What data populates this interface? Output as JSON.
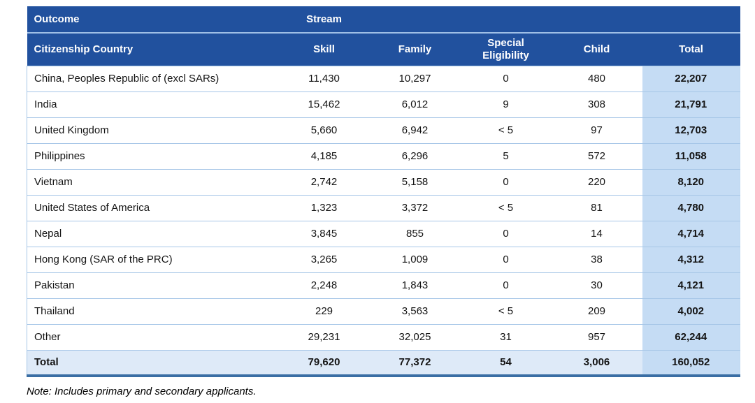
{
  "table": {
    "header": {
      "outcome_label": "Outcome",
      "stream_label": "Stream",
      "columns": {
        "country": "Citizenship Country",
        "skill": "Skill",
        "family": "Family",
        "special_eligibility": "Special Eligibility",
        "child": "Child",
        "total": "Total"
      }
    },
    "rows": [
      {
        "country": "China, Peoples Republic of (excl SARs)",
        "skill": "11,430",
        "family": "10,297",
        "special_eligibility": "0",
        "child": "480",
        "total": "22,207"
      },
      {
        "country": "India",
        "skill": "15,462",
        "family": "6,012",
        "special_eligibility": "9",
        "child": "308",
        "total": "21,791"
      },
      {
        "country": "United Kingdom",
        "skill": "5,660",
        "family": "6,942",
        "special_eligibility": "< 5",
        "child": "97",
        "total": "12,703"
      },
      {
        "country": "Philippines",
        "skill": "4,185",
        "family": "6,296",
        "special_eligibility": "5",
        "child": "572",
        "total": "11,058"
      },
      {
        "country": "Vietnam",
        "skill": "2,742",
        "family": "5,158",
        "special_eligibility": "0",
        "child": "220",
        "total": "8,120"
      },
      {
        "country": "United States of America",
        "skill": "1,323",
        "family": "3,372",
        "special_eligibility": "< 5",
        "child": "81",
        "total": "4,780"
      },
      {
        "country": "Nepal",
        "skill": "3,845",
        "family": "855",
        "special_eligibility": "0",
        "child": "14",
        "total": "4,714"
      },
      {
        "country": "Hong Kong (SAR of the PRC)",
        "skill": "3,265",
        "family": "1,009",
        "special_eligibility": "0",
        "child": "38",
        "total": "4,312"
      },
      {
        "country": "Pakistan",
        "skill": "2,248",
        "family": "1,843",
        "special_eligibility": "0",
        "child": "30",
        "total": "4,121"
      },
      {
        "country": "Thailand",
        "skill": "229",
        "family": "3,563",
        "special_eligibility": "< 5",
        "child": "209",
        "total": "4,002"
      },
      {
        "country": "Other",
        "skill": "29,231",
        "family": "32,025",
        "special_eligibility": "31",
        "child": "957",
        "total": "62,244"
      }
    ],
    "total_row": {
      "country": "Total",
      "skill": "79,620",
      "family": "77,372",
      "special_eligibility": "54",
      "child": "3,006",
      "total": "160,052"
    },
    "colors": {
      "header_bg": "#21519E",
      "header_text": "#FFFFFF",
      "total_column_bg": "#C5DCF4",
      "total_row_bg": "#DEEAF8",
      "row_divider": "#A6C6E7",
      "header_divider": "#9FBFE6",
      "bottom_border": "#3A6EA4",
      "body_text": "#141414",
      "page_bg": "#FFFFFF"
    }
  },
  "note": "Note: Includes primary and secondary applicants."
}
